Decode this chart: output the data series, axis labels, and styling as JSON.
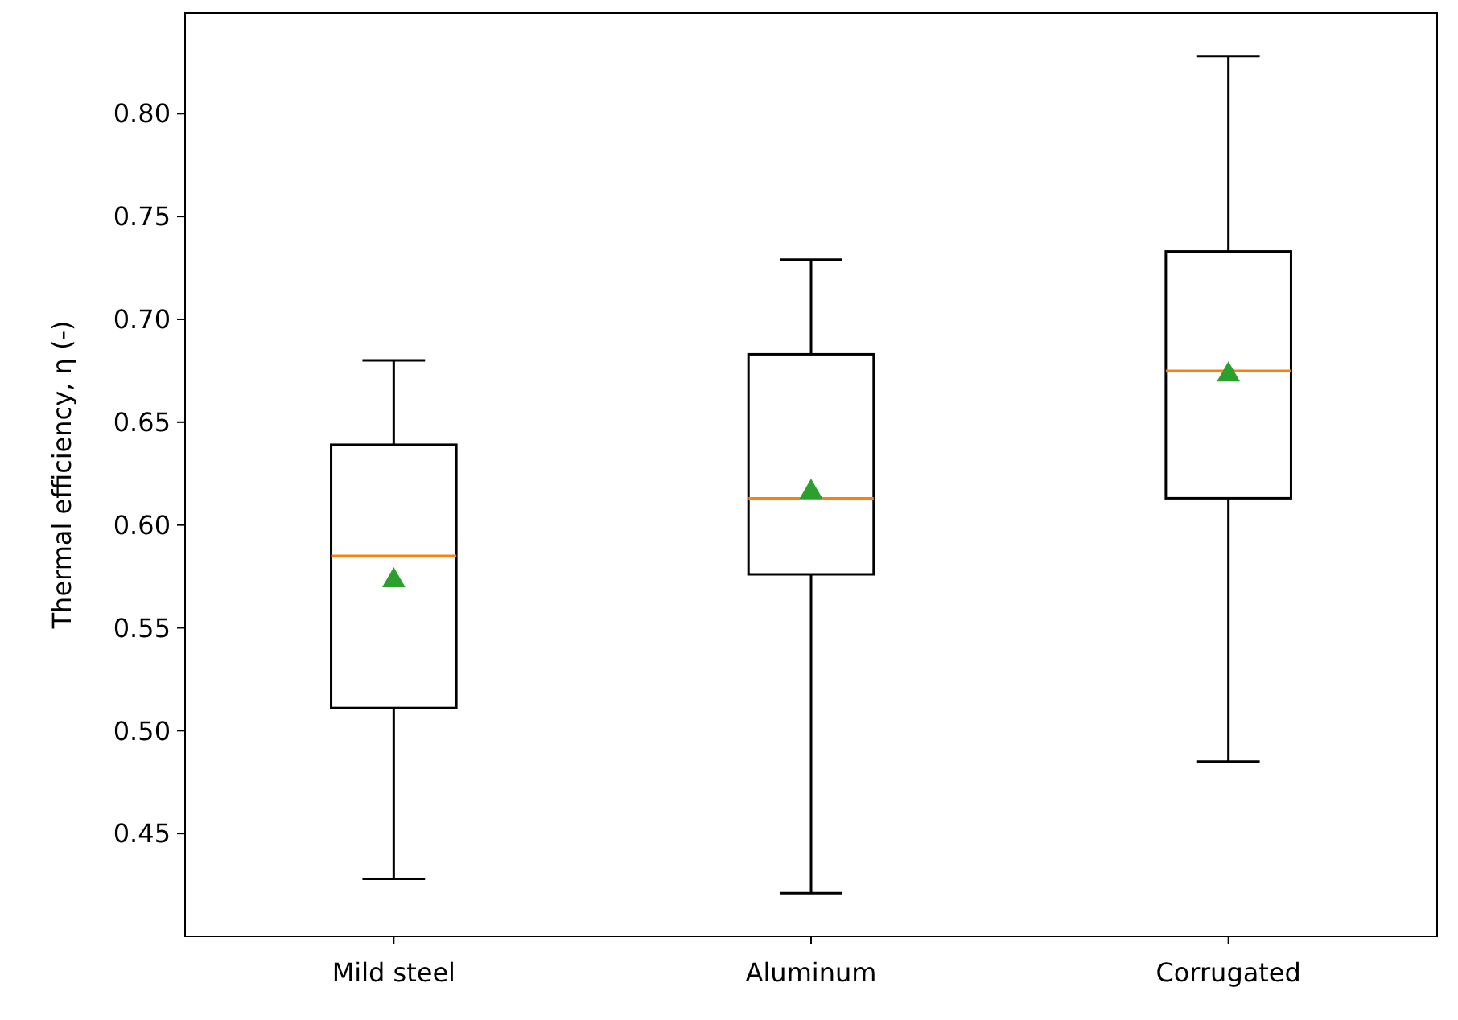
{
  "chart_data": {
    "type": "box",
    "ylabel": "Thermal efficiency, η (-)",
    "categories": [
      "Mild steel",
      "Aluminum",
      "Corrugated"
    ],
    "boxes": [
      {
        "low": 0.428,
        "q1": 0.511,
        "median": 0.585,
        "q3": 0.639,
        "high": 0.68,
        "mean": 0.573
      },
      {
        "low": 0.421,
        "q1": 0.576,
        "median": 0.613,
        "q3": 0.683,
        "high": 0.729,
        "mean": 0.616
      },
      {
        "low": 0.485,
        "q1": 0.613,
        "median": 0.675,
        "q3": 0.733,
        "high": 0.828,
        "mean": 0.673
      }
    ],
    "ylim": [
      0.4,
      0.849
    ],
    "yticks": [
      {
        "value": 0.45,
        "label": "0.45"
      },
      {
        "value": 0.5,
        "label": "0.50"
      },
      {
        "value": 0.55,
        "label": "0.55"
      },
      {
        "value": 0.6,
        "label": "0.60"
      },
      {
        "value": 0.65,
        "label": "0.65"
      },
      {
        "value": 0.7,
        "label": "0.70"
      },
      {
        "value": 0.75,
        "label": "0.75"
      },
      {
        "value": 0.8,
        "label": "0.80"
      }
    ],
    "color": "#000000",
    "marker": "triangle",
    "grid": false
  }
}
